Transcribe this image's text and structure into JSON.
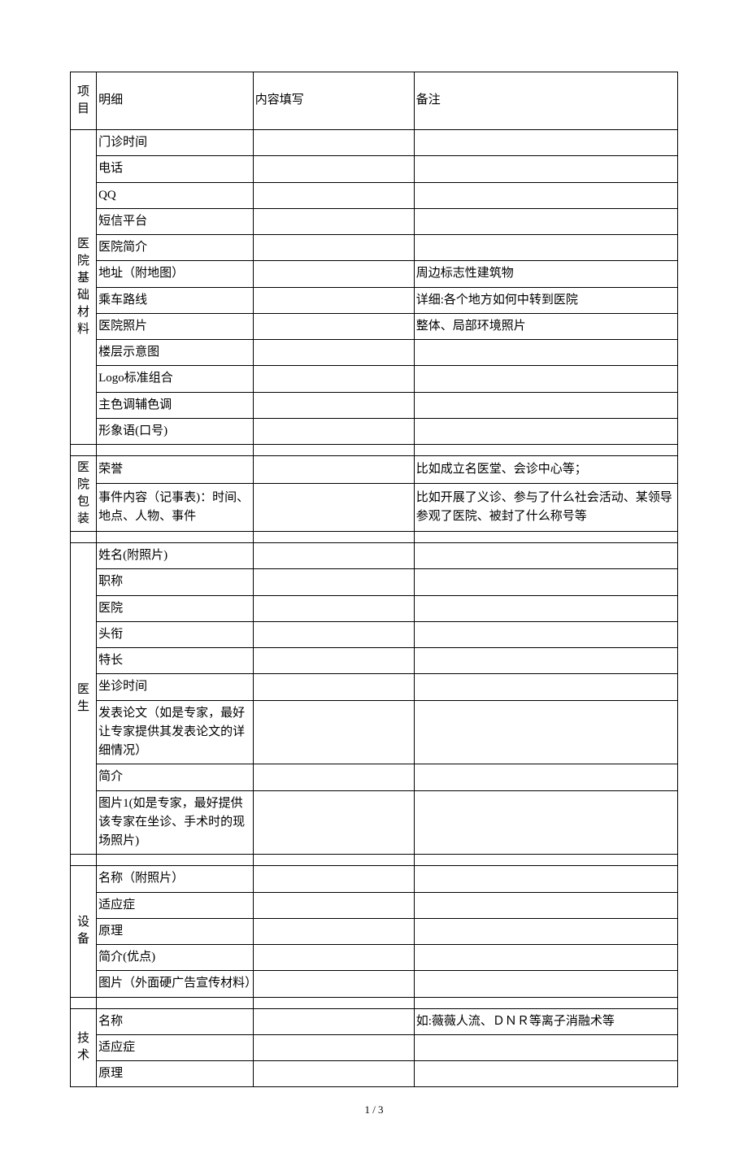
{
  "headers": {
    "project": "项\n目",
    "detail": "明细",
    "content": "内容填写",
    "note": "备注"
  },
  "sections": [
    {
      "project": "医\n院\n基\n础\n材\n料",
      "rows": [
        {
          "detail": "门诊时间",
          "content": "",
          "note": ""
        },
        {
          "detail": "电话",
          "content": "",
          "note": ""
        },
        {
          "detail": "QQ",
          "content": "",
          "note": ""
        },
        {
          "detail": "短信平台",
          "content": "",
          "note": ""
        },
        {
          "detail": "医院简介",
          "content": "",
          "note": ""
        },
        {
          "detail": "地址（附地图）",
          "content": "",
          "note": "周边标志性建筑物"
        },
        {
          "detail": "乘车路线",
          "content": "",
          "note": "详细:各个地方如何中转到医院"
        },
        {
          "detail": "医院照片",
          "content": "",
          "note": "整体、局部环境照片"
        },
        {
          "detail": "楼层示意图",
          "content": "",
          "note": ""
        },
        {
          "detail": "Logo标准组合",
          "content": "",
          "note": ""
        },
        {
          "detail": "主色调辅色调",
          "content": "",
          "note": ""
        },
        {
          "detail": "形象语(口号)",
          "content": "",
          "note": ""
        }
      ]
    },
    {
      "project": "医\n院\n包\n装",
      "rows": [
        {
          "detail": "荣誉",
          "content": "",
          "note": "比如成立名医堂、会诊中心等；"
        },
        {
          "detail": "事件内容（记事表)：时间、地点、人物、事件",
          "content": "",
          "note": "比如开展了义诊、参与了什么社会活动、某领导参观了医院、被封了什么称号等"
        }
      ]
    },
    {
      "project": "医\n生",
      "rows": [
        {
          "detail": "姓名(附照片)",
          "content": "",
          "note": ""
        },
        {
          "detail": "职称",
          "content": "",
          "note": ""
        },
        {
          "detail": "医院",
          "content": "",
          "note": ""
        },
        {
          "detail": "头衔",
          "content": "",
          "note": ""
        },
        {
          "detail": "特长",
          "content": "",
          "note": ""
        },
        {
          "detail": "坐诊时间",
          "content": "",
          "note": ""
        },
        {
          "detail": "发表论文（如是专家，最好让专家提供其发表论文的详细情况）",
          "content": "",
          "note": ""
        },
        {
          "detail": "简介",
          "content": "",
          "note": ""
        },
        {
          "detail": "图片1(如是专家，最好提供该专家在坐诊、手术时的现场照片)",
          "content": "",
          "note": ""
        }
      ]
    },
    {
      "project": "设\n备",
      "rows": [
        {
          "detail": "名称（附照片）",
          "content": "",
          "note": ""
        },
        {
          "detail": "适应症",
          "content": "",
          "note": ""
        },
        {
          "detail": "原理",
          "content": "",
          "note": ""
        },
        {
          "detail": "简介(优点)",
          "content": "",
          "note": ""
        },
        {
          "detail": "图片（外面硬广告宣传材料）",
          "content": "",
          "note": ""
        }
      ]
    },
    {
      "project": "技\n术",
      "rows": [
        {
          "detail": "名称",
          "content": "",
          "note": "如:薇薇人流、ＤＮＲ等离子消融术等"
        },
        {
          "detail": "适应症",
          "content": "",
          "note": ""
        },
        {
          "detail": "原理",
          "content": "",
          "note": ""
        }
      ]
    }
  ],
  "pageNumber": "1 / 3"
}
